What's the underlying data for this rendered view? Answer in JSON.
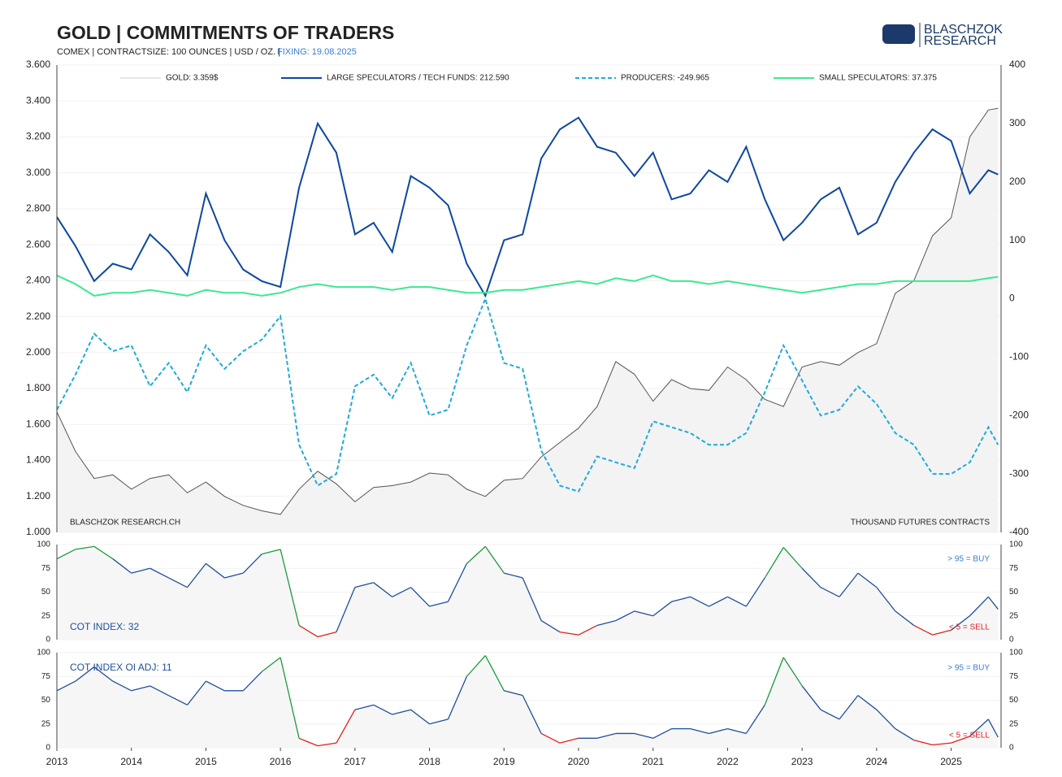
{
  "logo": {
    "line1": "BLASCHZOK",
    "line2": "RESEARCH"
  },
  "chart_data": [
    {
      "type": "line",
      "title": "GOLD | COMMITMENTS OF TRADERS",
      "subtitle": "COMEX | CONTRACTSIZE: 100 OUNCES | USD / OZ. |",
      "fixing": "FIXING: 19.08.2025",
      "watermark": "BLASCHZOK RESEARCH.CH",
      "y2_label": "THOUSAND  FUTURES CONTRACTS",
      "xlim": [
        2013,
        2025.67
      ],
      "x": [
        2013,
        2013.25,
        2013.5,
        2013.75,
        2014,
        2014.25,
        2014.5,
        2014.75,
        2015,
        2015.25,
        2015.5,
        2015.75,
        2016,
        2016.25,
        2016.5,
        2016.75,
        2017,
        2017.25,
        2017.5,
        2017.75,
        2018,
        2018.25,
        2018.5,
        2018.75,
        2019,
        2019.25,
        2019.5,
        2019.75,
        2020,
        2020.25,
        2020.5,
        2020.75,
        2021,
        2021.25,
        2021.5,
        2021.75,
        2022,
        2022.25,
        2022.5,
        2022.75,
        2023,
        2023.25,
        2023.5,
        2023.75,
        2024,
        2024.25,
        2024.5,
        2024.75,
        2025,
        2025.25,
        2025.5,
        2025.63
      ],
      "ylim": [
        1000,
        3600
      ],
      "yticks": [
        {
          "value": 1000,
          "label": "1.000"
        },
        {
          "value": 1200,
          "label": "1.200"
        },
        {
          "value": 1400,
          "label": "1.400"
        },
        {
          "value": 1600,
          "label": "1.600"
        },
        {
          "value": 1800,
          "label": "1.800"
        },
        {
          "value": 2000,
          "label": "2.000"
        },
        {
          "value": 2200,
          "label": "2.200"
        },
        {
          "value": 2400,
          "label": "2.400"
        },
        {
          "value": 2600,
          "label": "2.600"
        },
        {
          "value": 2800,
          "label": "2.800"
        },
        {
          "value": 3000,
          "label": "3.000"
        },
        {
          "value": 3200,
          "label": "3.200"
        },
        {
          "value": 3400,
          "label": "3.400"
        },
        {
          "value": 3600,
          "label": "3.600"
        }
      ],
      "y2lim": [
        -400,
        400
      ],
      "y2ticks": [
        -400,
        -300,
        -200,
        -100,
        0,
        100,
        200,
        300,
        400
      ],
      "grid": true,
      "series": [
        {
          "name": "GOLD: 3.359$",
          "color": "#555555",
          "area": "#f3f3f3",
          "legend_color": "#e6e6e6",
          "values": [
            1670,
            1450,
            1300,
            1320,
            1240,
            1300,
            1320,
            1220,
            1280,
            1200,
            1150,
            1120,
            1100,
            1240,
            1340,
            1270,
            1170,
            1250,
            1260,
            1280,
            1330,
            1320,
            1240,
            1200,
            1290,
            1300,
            1420,
            1500,
            1580,
            1700,
            1950,
            1880,
            1730,
            1850,
            1800,
            1790,
            1920,
            1850,
            1740,
            1700,
            1920,
            1950,
            1930,
            2000,
            2050,
            2330,
            2400,
            2650,
            2750,
            3200,
            3350,
            3359
          ]
        },
        {
          "name": "LARGE SPECULATORS / TECH FUNDS: 212.590",
          "color": "#0d47a1",
          "axis": "y2",
          "values": [
            140,
            90,
            30,
            60,
            50,
            110,
            80,
            40,
            180,
            100,
            50,
            30,
            20,
            190,
            300,
            250,
            110,
            130,
            80,
            210,
            190,
            160,
            60,
            5,
            100,
            110,
            240,
            290,
            310,
            260,
            250,
            210,
            250,
            170,
            180,
            220,
            200,
            260,
            170,
            100,
            130,
            170,
            190,
            110,
            130,
            200,
            250,
            290,
            270,
            180,
            220,
            212.59
          ]
        },
        {
          "name": "PRODUCERS: -249.965",
          "color": "#1eaadf",
          "dashed": true,
          "axis": "y2",
          "values": [
            -190,
            -130,
            -60,
            -90,
            -80,
            -150,
            -110,
            -160,
            -80,
            -120,
            -90,
            -70,
            -30,
            -250,
            -320,
            -300,
            -150,
            -130,
            -170,
            -110,
            -200,
            -190,
            -80,
            0,
            -110,
            -120,
            -260,
            -320,
            -330,
            -270,
            -280,
            -290,
            -210,
            -220,
            -230,
            -250,
            -250,
            -230,
            -160,
            -80,
            -140,
            -200,
            -190,
            -150,
            -180,
            -230,
            -250,
            -300,
            -300,
            -280,
            -220,
            -249.965
          ]
        },
        {
          "name": "SMALL SPECULATORS: 37.375",
          "color": "#3ee890",
          "axis": "y2",
          "values": [
            40,
            25,
            5,
            10,
            10,
            15,
            10,
            5,
            15,
            10,
            10,
            5,
            10,
            20,
            25,
            20,
            20,
            20,
            15,
            20,
            20,
            15,
            10,
            10,
            15,
            15,
            20,
            25,
            30,
            25,
            35,
            30,
            40,
            30,
            30,
            25,
            30,
            25,
            20,
            15,
            10,
            15,
            20,
            25,
            25,
            30,
            30,
            30,
            30,
            30,
            35,
            37.375
          ]
        }
      ]
    },
    {
      "type": "index",
      "label": "COT INDEX: 32",
      "buy_label": "> 95 = BUY",
      "sell_label": "< 5 = SELL",
      "xlim": [
        2013,
        2025.67
      ],
      "ylim": [
        0,
        100
      ],
      "yticks": [
        0,
        25,
        50,
        75,
        100
      ],
      "thresholds": [
        5,
        95
      ],
      "color": "#1f4e9c",
      "high_color": "#1a9c3a",
      "low_color": "#e02020",
      "values": [
        85,
        95,
        98,
        85,
        70,
        75,
        65,
        55,
        80,
        65,
        70,
        90,
        95,
        15,
        3,
        8,
        55,
        60,
        45,
        55,
        35,
        40,
        80,
        98,
        70,
        65,
        20,
        8,
        5,
        15,
        20,
        30,
        25,
        40,
        45,
        35,
        45,
        35,
        65,
        97,
        75,
        55,
        45,
        70,
        55,
        30,
        15,
        5,
        10,
        25,
        45,
        32
      ]
    },
    {
      "type": "index",
      "label": "COT INDEX OI ADJ: 11",
      "buy_label": "> 95 = BUY",
      "sell_label": "< 5 = SELL",
      "xlim": [
        2013,
        2025.67
      ],
      "ylim": [
        0,
        100
      ],
      "yticks": [
        0,
        25,
        50,
        75,
        100
      ],
      "thresholds": [
        5,
        95
      ],
      "color": "#1f4e9c",
      "high_color": "#1a9c3a",
      "low_color": "#e02020",
      "xticks": [
        2013,
        2014,
        2015,
        2016,
        2017,
        2018,
        2019,
        2020,
        2021,
        2022,
        2023,
        2024,
        2025
      ],
      "values": [
        60,
        70,
        85,
        70,
        60,
        65,
        55,
        45,
        70,
        60,
        60,
        80,
        95,
        10,
        2,
        5,
        40,
        45,
        35,
        40,
        25,
        30,
        75,
        97,
        60,
        55,
        15,
        5,
        10,
        10,
        15,
        15,
        10,
        20,
        20,
        15,
        20,
        15,
        45,
        95,
        65,
        40,
        30,
        55,
        40,
        20,
        8,
        3,
        5,
        12,
        30,
        11
      ]
    }
  ]
}
